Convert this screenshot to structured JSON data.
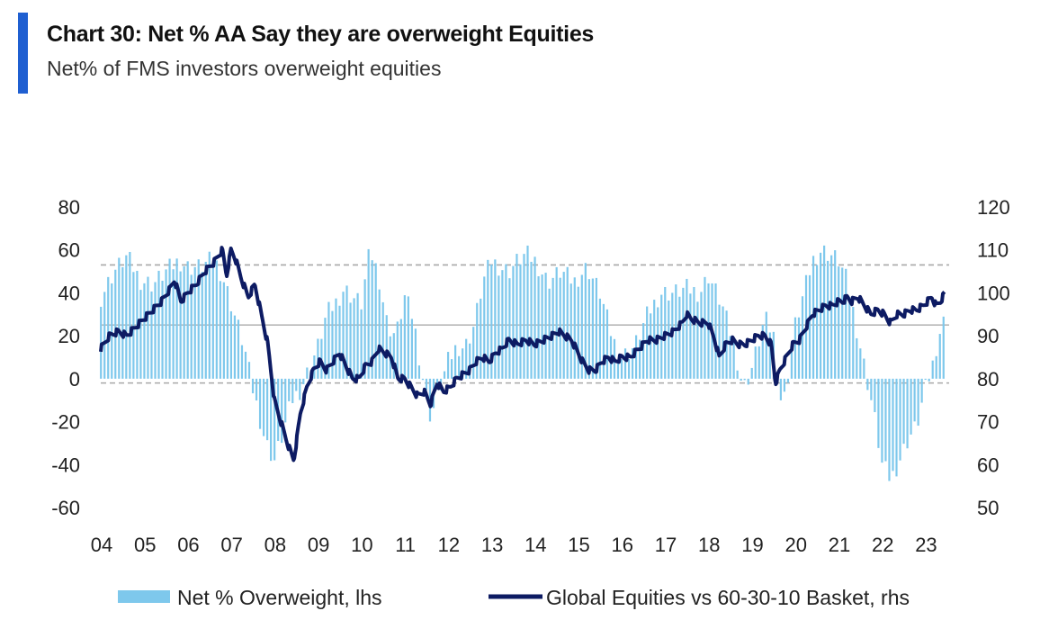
{
  "header": {
    "title": "Chart 30: Net % AA Say they are overweight Equities",
    "subtitle": "Net% of FMS investors overweight equities"
  },
  "colors": {
    "accent": "#1f5fd1",
    "bars": "#7ec8ec",
    "line": "#0d1b63",
    "refline_dashed": "#a8a8a8",
    "refline_solid": "#b8b8b8"
  },
  "chart_data": {
    "type": "bar+line",
    "title": "Chart 30: Net % AA Say they are overweight Equities",
    "subtitle": "Net% of FMS investors overweight equities",
    "x_ticks": [
      "04",
      "05",
      "06",
      "07",
      "08",
      "09",
      "10",
      "11",
      "12",
      "13",
      "14",
      "15",
      "16",
      "17",
      "18",
      "19",
      "20",
      "21",
      "22",
      "23"
    ],
    "x_range": [
      2004.0,
      2023.55
    ],
    "y_left": {
      "range": [
        -60,
        80
      ],
      "ticks": [
        "80",
        "60",
        "40",
        "20",
        "0",
        "-20",
        "-40",
        "-60"
      ]
    },
    "y_right": {
      "range": [
        50,
        120
      ],
      "ticks": [
        "120",
        "110",
        "100",
        "90",
        "80",
        "70",
        "60",
        "50"
      ]
    },
    "reference_lines_lhs": [
      {
        "value": 53,
        "style": "dashed"
      },
      {
        "value": 25,
        "style": "solid"
      },
      {
        "value": -2,
        "style": "dashed"
      }
    ],
    "series": [
      {
        "name": "Net % Overweight, lhs",
        "axis": "left",
        "kind": "bar",
        "frequency": "monthly",
        "anchors": [
          [
            2004.0,
            38
          ],
          [
            2004.3,
            50
          ],
          [
            2004.6,
            57
          ],
          [
            2004.9,
            46
          ],
          [
            2005.2,
            44
          ],
          [
            2005.5,
            50
          ],
          [
            2005.8,
            55
          ],
          [
            2006.0,
            52
          ],
          [
            2006.3,
            52
          ],
          [
            2006.6,
            56
          ],
          [
            2006.8,
            48
          ],
          [
            2007.0,
            35
          ],
          [
            2007.3,
            15
          ],
          [
            2007.5,
            -5
          ],
          [
            2007.8,
            -30
          ],
          [
            2008.0,
            -38
          ],
          [
            2008.2,
            -25
          ],
          [
            2008.4,
            -10
          ],
          [
            2008.6,
            -5
          ],
          [
            2008.8,
            5
          ],
          [
            2009.0,
            15
          ],
          [
            2009.2,
            30
          ],
          [
            2009.4,
            35
          ],
          [
            2009.6,
            42
          ],
          [
            2009.8,
            38
          ],
          [
            2010.0,
            35
          ],
          [
            2010.2,
            60
          ],
          [
            2010.4,
            48
          ],
          [
            2010.6,
            25
          ],
          [
            2010.8,
            20
          ],
          [
            2011.0,
            38
          ],
          [
            2011.2,
            28
          ],
          [
            2011.4,
            2
          ],
          [
            2011.6,
            -18
          ],
          [
            2011.8,
            -5
          ],
          [
            2012.0,
            8
          ],
          [
            2012.2,
            15
          ],
          [
            2012.4,
            15
          ],
          [
            2012.6,
            25
          ],
          [
            2012.8,
            45
          ],
          [
            2013.0,
            55
          ],
          [
            2013.2,
            52
          ],
          [
            2013.4,
            50
          ],
          [
            2013.6,
            55
          ],
          [
            2013.8,
            58
          ],
          [
            2014.0,
            55
          ],
          [
            2014.3,
            45
          ],
          [
            2014.6,
            50
          ],
          [
            2014.9,
            45
          ],
          [
            2015.2,
            52
          ],
          [
            2015.5,
            40
          ],
          [
            2015.8,
            18
          ],
          [
            2016.0,
            10
          ],
          [
            2016.3,
            15
          ],
          [
            2016.6,
            30
          ],
          [
            2016.9,
            40
          ],
          [
            2017.2,
            40
          ],
          [
            2017.5,
            42
          ],
          [
            2017.8,
            40
          ],
          [
            2018.0,
            48
          ],
          [
            2018.3,
            35
          ],
          [
            2018.6,
            15
          ],
          [
            2018.8,
            -5
          ],
          [
            2019.0,
            5
          ],
          [
            2019.3,
            28
          ],
          [
            2019.5,
            20
          ],
          [
            2019.7,
            -15
          ],
          [
            2019.9,
            10
          ],
          [
            2020.0,
            25
          ],
          [
            2020.2,
            40
          ],
          [
            2020.4,
            55
          ],
          [
            2020.6,
            60
          ],
          [
            2020.8,
            58
          ],
          [
            2021.0,
            55
          ],
          [
            2021.2,
            45
          ],
          [
            2021.4,
            25
          ],
          [
            2021.6,
            5
          ],
          [
            2021.8,
            -15
          ],
          [
            2022.0,
            -40
          ],
          [
            2022.2,
            -47
          ],
          [
            2022.4,
            -38
          ],
          [
            2022.6,
            -28
          ],
          [
            2022.8,
            -22
          ],
          [
            2023.0,
            -5
          ],
          [
            2023.15,
            5
          ],
          [
            2023.3,
            20
          ],
          [
            2023.45,
            28
          ]
        ]
      },
      {
        "name": "Global Equities vs 60-30-10 Basket, rhs",
        "axis": "right",
        "kind": "line",
        "anchors": [
          [
            2004.0,
            87
          ],
          [
            2004.2,
            90
          ],
          [
            2004.4,
            91
          ],
          [
            2004.6,
            90
          ],
          [
            2004.8,
            92
          ],
          [
            2005.0,
            94
          ],
          [
            2005.2,
            96
          ],
          [
            2005.4,
            98
          ],
          [
            2005.6,
            101
          ],
          [
            2005.7,
            103
          ],
          [
            2005.85,
            98
          ],
          [
            2006.0,
            100
          ],
          [
            2006.2,
            102
          ],
          [
            2006.4,
            105
          ],
          [
            2006.6,
            107
          ],
          [
            2006.8,
            110
          ],
          [
            2006.9,
            104
          ],
          [
            2007.0,
            110
          ],
          [
            2007.1,
            108
          ],
          [
            2007.25,
            103
          ],
          [
            2007.4,
            99
          ],
          [
            2007.55,
            102
          ],
          [
            2007.7,
            95
          ],
          [
            2007.85,
            88
          ],
          [
            2008.0,
            75
          ],
          [
            2008.15,
            70
          ],
          [
            2008.3,
            65
          ],
          [
            2008.45,
            61
          ],
          [
            2008.6,
            72
          ],
          [
            2008.75,
            78
          ],
          [
            2008.9,
            82
          ],
          [
            2009.05,
            84
          ],
          [
            2009.2,
            82
          ],
          [
            2009.35,
            84
          ],
          [
            2009.5,
            86
          ],
          [
            2009.65,
            83
          ],
          [
            2009.8,
            80
          ],
          [
            2009.95,
            80
          ],
          [
            2010.1,
            83
          ],
          [
            2010.25,
            84
          ],
          [
            2010.4,
            87
          ],
          [
            2010.55,
            86
          ],
          [
            2010.7,
            85
          ],
          [
            2010.85,
            80
          ],
          [
            2011.0,
            80
          ],
          [
            2011.15,
            78
          ],
          [
            2011.3,
            76
          ],
          [
            2011.45,
            77
          ],
          [
            2011.6,
            74
          ],
          [
            2011.75,
            79
          ],
          [
            2011.9,
            77
          ],
          [
            2012.05,
            78
          ],
          [
            2012.2,
            80
          ],
          [
            2012.35,
            81
          ],
          [
            2012.5,
            82
          ],
          [
            2012.65,
            84
          ],
          [
            2012.8,
            85
          ],
          [
            2012.95,
            84
          ],
          [
            2013.1,
            86
          ],
          [
            2013.25,
            87
          ],
          [
            2013.4,
            89
          ],
          [
            2013.6,
            88
          ],
          [
            2013.8,
            89
          ],
          [
            2014.0,
            88
          ],
          [
            2014.2,
            89
          ],
          [
            2014.4,
            90
          ],
          [
            2014.55,
            91
          ],
          [
            2014.7,
            90
          ],
          [
            2014.85,
            89
          ],
          [
            2015.0,
            86
          ],
          [
            2015.1,
            84
          ],
          [
            2015.25,
            82
          ],
          [
            2015.4,
            82
          ],
          [
            2015.55,
            84
          ],
          [
            2015.7,
            85
          ],
          [
            2015.85,
            84
          ],
          [
            2016.0,
            85
          ],
          [
            2016.2,
            85
          ],
          [
            2016.4,
            87
          ],
          [
            2016.6,
            89
          ],
          [
            2016.8,
            89
          ],
          [
            2017.0,
            90
          ],
          [
            2017.2,
            91
          ],
          [
            2017.4,
            93
          ],
          [
            2017.5,
            95
          ],
          [
            2017.6,
            94
          ],
          [
            2017.8,
            93
          ],
          [
            2018.0,
            93
          ],
          [
            2018.15,
            89
          ],
          [
            2018.25,
            85
          ],
          [
            2018.4,
            88
          ],
          [
            2018.55,
            89
          ],
          [
            2018.7,
            88
          ],
          [
            2018.85,
            88
          ],
          [
            2019.0,
            89
          ],
          [
            2019.15,
            90
          ],
          [
            2019.3,
            90
          ],
          [
            2019.45,
            88
          ],
          [
            2019.55,
            79
          ],
          [
            2019.65,
            82
          ],
          [
            2019.8,
            85
          ],
          [
            2019.95,
            88
          ],
          [
            2020.1,
            89
          ],
          [
            2020.25,
            92
          ],
          [
            2020.4,
            95
          ],
          [
            2020.55,
            96
          ],
          [
            2020.7,
            97
          ],
          [
            2020.85,
            97
          ],
          [
            2021.0,
            98
          ],
          [
            2021.1,
            98
          ],
          [
            2021.2,
            99
          ],
          [
            2021.3,
            98
          ],
          [
            2021.45,
            99
          ],
          [
            2021.6,
            97
          ],
          [
            2021.75,
            95
          ],
          [
            2021.9,
            96
          ],
          [
            2022.05,
            95
          ],
          [
            2022.2,
            93
          ],
          [
            2022.35,
            95
          ],
          [
            2022.5,
            95
          ],
          [
            2022.65,
            96
          ],
          [
            2022.8,
            96
          ],
          [
            2022.95,
            97
          ],
          [
            2023.05,
            98
          ],
          [
            2023.15,
            99
          ],
          [
            2023.25,
            97
          ],
          [
            2023.35,
            98
          ],
          [
            2023.45,
            100
          ]
        ]
      }
    ],
    "legend": [
      {
        "label": "Net % Overweight, lhs",
        "symbol": "bar"
      },
      {
        "label": "Global Equities vs 60-30-10 Basket, rhs",
        "symbol": "line"
      }
    ],
    "legend_position": "bottom"
  }
}
